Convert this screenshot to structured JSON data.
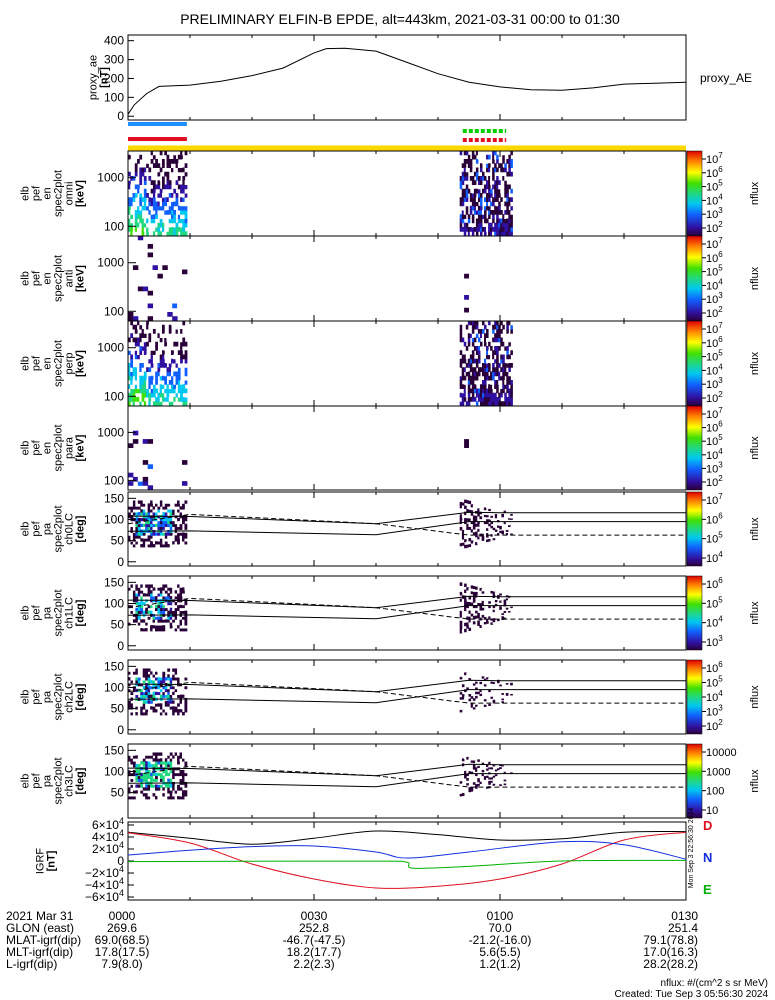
{
  "title": "PRELIMINARY ELFIN-B EPDE, alt=443km, 2021-03-31 00:00 to 01:30",
  "chart_data": {
    "type": "multi-panel time series / spectrogram",
    "time_range_minutes": [
      0,
      90
    ],
    "proxy_ae": {
      "ylabel": [
        "proxy_ae",
        "[nT]"
      ],
      "legend": "proxy_AE",
      "yticks": [
        "400",
        "300",
        "200",
        "100",
        "0"
      ],
      "ytick_values": [
        400,
        300,
        200,
        100,
        0
      ],
      "ylim": [
        -20,
        430
      ],
      "series": [
        [
          0,
          10
        ],
        [
          1,
          60
        ],
        [
          3,
          120
        ],
        [
          5,
          158
        ],
        [
          10,
          165
        ],
        [
          15,
          185
        ],
        [
          20,
          215
        ],
        [
          25,
          255
        ],
        [
          30,
          335
        ],
        [
          32,
          358
        ],
        [
          35,
          360
        ],
        [
          40,
          345
        ],
        [
          45,
          285
        ],
        [
          50,
          225
        ],
        [
          55,
          180
        ],
        [
          60,
          155
        ],
        [
          65,
          140
        ],
        [
          70,
          138
        ],
        [
          75,
          150
        ],
        [
          80,
          170
        ],
        [
          85,
          175
        ],
        [
          90,
          180
        ]
      ]
    },
    "coverage_bars": [
      {
        "color": "#1e90ff",
        "segments": [
          [
            0,
            9.5
          ]
        ],
        "style": "solid"
      },
      {
        "color": "#e01020",
        "segments": [
          [
            0,
            9.5
          ]
        ],
        "style": "solid"
      },
      {
        "color": "#00d000",
        "segments": [
          [
            54,
            61
          ]
        ],
        "style": "dashed"
      },
      {
        "color": "#e01020",
        "segments": [
          [
            54,
            61
          ]
        ],
        "style": "dashed"
      },
      {
        "color": "#ffd700",
        "segments": [
          [
            0,
            90
          ]
        ],
        "style": "solid"
      }
    ],
    "spectrograms": [
      {
        "ylabel": [
          "elb",
          "pef",
          "en",
          "spec2plot",
          "omni",
          "[keV]"
        ],
        "yticks": [
          "1000",
          "100"
        ],
        "cbar_label": "nflux",
        "cbar_ticks": [
          "10^7",
          "10^6",
          "10^5",
          "10^4",
          "10^3",
          "10^2"
        ],
        "intensity": "high"
      },
      {
        "ylabel": [
          "elb",
          "pef",
          "en",
          "spec2plot",
          "anti",
          "[keV]"
        ],
        "yticks": [
          "1000",
          "100"
        ],
        "cbar_label": "nflux",
        "cbar_ticks": [
          "10^7",
          "10^6",
          "10^5",
          "10^4",
          "10^3",
          "10^2"
        ],
        "intensity": "low"
      },
      {
        "ylabel": [
          "elb",
          "pef",
          "en",
          "spec2plot",
          "perp",
          "[keV]"
        ],
        "yticks": [
          "1000",
          "100"
        ],
        "cbar_label": "nflux",
        "cbar_ticks": [
          "10^7",
          "10^6",
          "10^5",
          "10^4",
          "10^3",
          "10^2"
        ],
        "intensity": "high"
      },
      {
        "ylabel": [
          "elb",
          "pef",
          "en",
          "spec2plot",
          "para",
          "[keV]"
        ],
        "yticks": [
          "1000",
          "100"
        ],
        "cbar_label": "nflux",
        "cbar_ticks": [
          "10^7",
          "10^6",
          "10^5",
          "10^4",
          "10^3",
          "10^2"
        ],
        "intensity": "low"
      }
    ],
    "pitch_angle_panels": [
      {
        "ylabel": [
          "elb",
          "pef",
          "pa",
          "spec2plot",
          "ch0LC",
          "[deg]"
        ],
        "yticks": [
          "150",
          "100",
          "50",
          "0"
        ],
        "cbar_label": "nflux",
        "cbar_ticks": [
          "10^7",
          "10^6",
          "10^5",
          "10^4"
        ],
        "cbar_range": [
          3.5,
          7
        ]
      },
      {
        "ylabel": [
          "elb",
          "pef",
          "pa",
          "spec2plot",
          "ch1LC",
          "[deg]"
        ],
        "yticks": [
          "150",
          "100",
          "50",
          "0"
        ],
        "cbar_label": "nflux",
        "cbar_ticks": [
          "10^6",
          "10^5",
          "10^4",
          "10^3"
        ],
        "cbar_range": [
          3,
          7
        ]
      },
      {
        "ylabel": [
          "elb",
          "pef",
          "pa",
          "spec2plot",
          "ch2LC",
          "[deg]"
        ],
        "yticks": [
          "150",
          "100",
          "50",
          "0"
        ],
        "cbar_label": "nflux",
        "cbar_ticks": [
          "10^6",
          "10^5",
          "10^4",
          "10^3",
          "10^2"
        ],
        "cbar_range": [
          2,
          6.5
        ]
      },
      {
        "ylabel": [
          "elb",
          "pef",
          "pa",
          "spec2plot",
          "ch3LC",
          "[deg]"
        ],
        "yticks": [
          "150",
          "100",
          "50"
        ],
        "cbar_label": "nflux",
        "cbar_ticks": [
          "10000",
          "1000",
          "100",
          "10"
        ],
        "cbar_range": [
          1,
          4.3
        ]
      }
    ],
    "pa_lines": {
      "solid_upper": [
        [
          0,
          108
        ],
        [
          10,
          107
        ],
        [
          40,
          90
        ],
        [
          55,
          117
        ],
        [
          60,
          116
        ],
        [
          90,
          116
        ]
      ],
      "solid_lower": [
        [
          0,
          72
        ],
        [
          10,
          73
        ],
        [
          40,
          64
        ],
        [
          55,
          95
        ],
        [
          90,
          95
        ]
      ],
      "dashed": [
        [
          0,
          90
        ],
        [
          10,
          112
        ],
        [
          40,
          90
        ],
        [
          55,
          63
        ],
        [
          90,
          63
        ]
      ]
    },
    "igrf": {
      "ylabel": [
        "IGRF",
        "[nT]"
      ],
      "yticks": [
        "6×10^4",
        "4×10^4",
        "2×10^4",
        "0",
        "−2×10^4",
        "−4×10^4",
        "−6×10^4"
      ],
      "ytick_values": [
        60000,
        40000,
        20000,
        0,
        -20000,
        -40000,
        -60000
      ],
      "ylim": [
        -65000,
        65000
      ],
      "series": [
        {
          "name": "total",
          "color": "#000000",
          "points": [
            [
              0,
              48000
            ],
            [
              10,
              38000
            ],
            [
              20,
              28000
            ],
            [
              30,
              38000
            ],
            [
              40,
              50000
            ],
            [
              50,
              44000
            ],
            [
              60,
              35000
            ],
            [
              70,
              37000
            ],
            [
              80,
              48000
            ],
            [
              90,
              49000
            ]
          ]
        },
        {
          "name": "Bx",
          "color": "#e01020",
          "points": [
            [
              0,
              47000
            ],
            [
              10,
              30000
            ],
            [
              20,
              -5000
            ],
            [
              30,
              -30000
            ],
            [
              40,
              -45000
            ],
            [
              50,
              -42000
            ],
            [
              60,
              -30000
            ],
            [
              70,
              -5000
            ],
            [
              80,
              35000
            ],
            [
              90,
              48000
            ]
          ]
        },
        {
          "name": "By",
          "color": "#1030e0",
          "points": [
            [
              0,
              10000
            ],
            [
              10,
              18000
            ],
            [
              20,
              24000
            ],
            [
              30,
              25000
            ],
            [
              40,
              15000
            ],
            [
              45,
              5000
            ],
            [
              55,
              15000
            ],
            [
              70,
              32000
            ],
            [
              80,
              27000
            ],
            [
              90,
              3000
            ]
          ]
        },
        {
          "name": "Bz",
          "color": "#00b000",
          "points": [
            [
              0,
              -1000
            ],
            [
              20,
              -300
            ],
            [
              40,
              -100
            ],
            [
              45,
              -2000
            ],
            [
              46,
              -12000
            ],
            [
              55,
              -9000
            ],
            [
              70,
              0
            ],
            [
              90,
              1000
            ]
          ]
        }
      ],
      "side_labels": [
        "D",
        "N",
        "E"
      ],
      "vertical_stamp": "Mon Sep  3 22:56:30 2024"
    },
    "xticks": [
      "0000",
      "0030",
      "0100",
      "0130"
    ],
    "xtick_minutes": [
      0,
      30,
      60,
      90
    ]
  },
  "ephemeris": {
    "rows": [
      {
        "label": "2021 Mar 31",
        "values": [
          "0000",
          "0030",
          "0100",
          "0130"
        ]
      },
      {
        "label": "GLON (east)",
        "values": [
          "269.6",
          "252.8",
          "70.0",
          "251.4"
        ]
      },
      {
        "label": "MLAT-igrf(dip)",
        "values": [
          "69.0(68.5)",
          "-46.7(-47.5)",
          "-21.2(-16.0)",
          "79.1(78.8)"
        ]
      },
      {
        "label": "MLT-igrf(dip)",
        "values": [
          "17.8(17.5)",
          "18.2(17.7)",
          "5.6(5.5)",
          "17.0(16.3)"
        ]
      },
      {
        "label": "L-igrf(dip)",
        "values": [
          "7.9(8.0)",
          "2.2(2.3)",
          "1.2(1.2)",
          "28.2(28.2)"
        ]
      }
    ]
  },
  "footer": {
    "units": "nflux: #/(cm^2 s sr MeV)",
    "created": "Created: Tue Sep  3 05:56:30 2024"
  }
}
